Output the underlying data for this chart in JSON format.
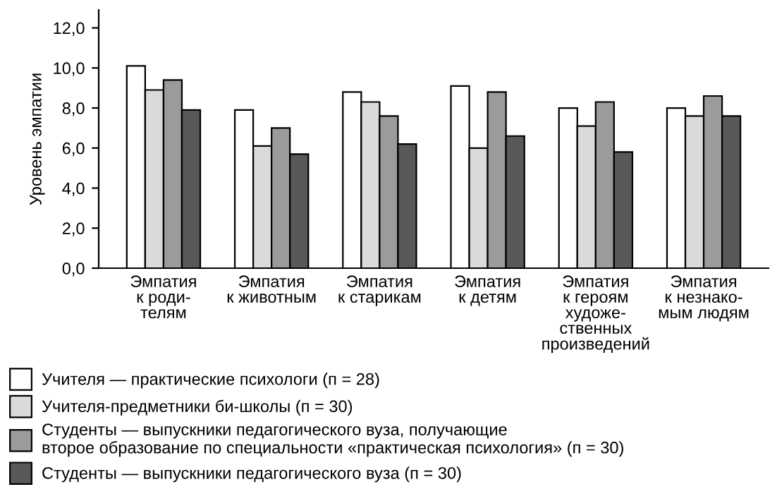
{
  "chart_data": {
    "type": "bar",
    "ylabel": "Уровень эмпатии",
    "categories": [
      "Эмпатия\nк роди-\nтелям",
      "Эмпатия\nк животным",
      "Эмпатия\nк старикам",
      "Эмпатия\nк детям",
      "Эмпатия\nк героям\nхудоже-\nственных\nпроизведений",
      "Эмпатия\nк незнако-\nмым людям"
    ],
    "series": [
      {
        "name": "Учителя — практические психологи (п = 28)",
        "color": "#ffffff",
        "values": [
          10.1,
          7.9,
          8.8,
          9.1,
          8.0,
          8.0
        ]
      },
      {
        "name": "Учителя-предметники би-школы (п = 30)",
        "color": "#d9dadc",
        "values": [
          8.9,
          6.1,
          8.3,
          6.0,
          7.1,
          7.6
        ]
      },
      {
        "name": "Студенты — выпускники педагогического вуза, получающие\nвторое образование по специальности «практическая психология» (п = 30)",
        "color": "#9a9b9d",
        "values": [
          9.4,
          7.0,
          7.6,
          8.8,
          8.3,
          8.6
        ]
      },
      {
        "name": "Студенты — выпускники педагогического вуза (п = 30)",
        "color": "#58595b",
        "values": [
          7.9,
          5.7,
          6.2,
          6.6,
          5.8,
          7.6
        ]
      }
    ],
    "ylim": [
      0,
      12.9
    ],
    "yticks": [
      {
        "value": 0,
        "label": "0,0"
      },
      {
        "value": 2,
        "label": "2,0"
      },
      {
        "value": 4,
        "label": "4,0"
      },
      {
        "value": 6,
        "label": "6,0"
      },
      {
        "value": 8,
        "label": "8,0"
      },
      {
        "value": 10,
        "label": "10,0"
      },
      {
        "value": 12,
        "label": "12,0"
      }
    ],
    "grid": false,
    "legend": "bottom"
  }
}
